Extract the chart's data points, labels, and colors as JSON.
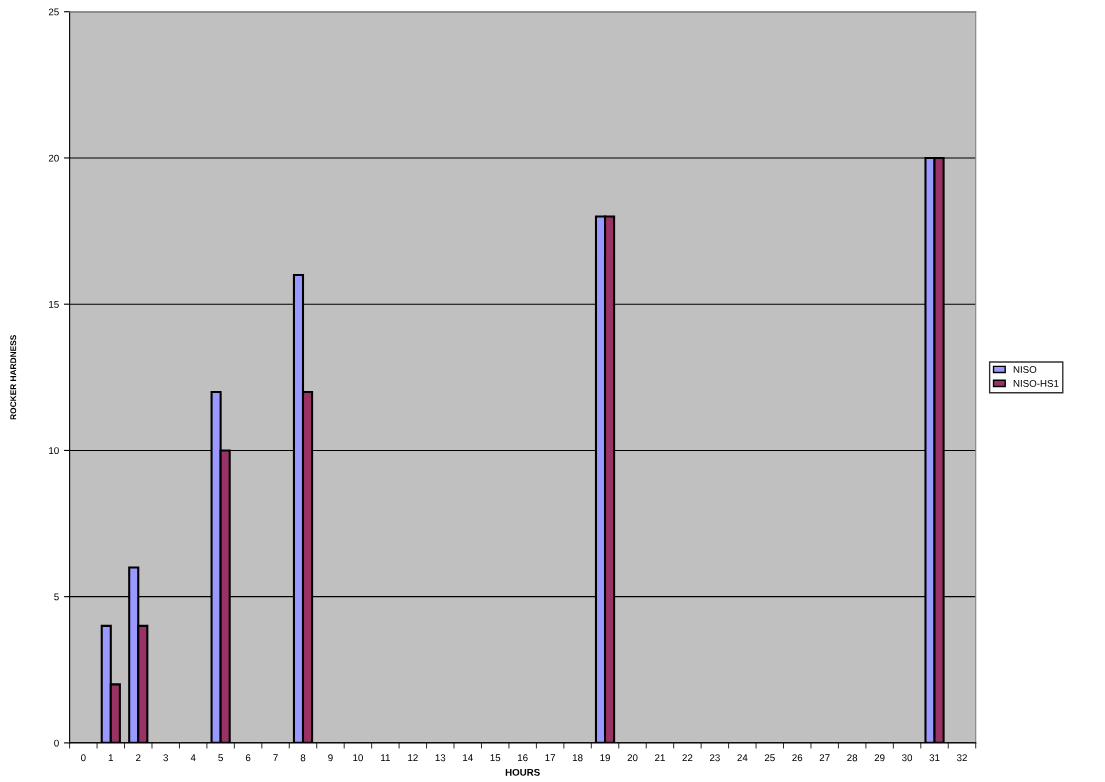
{
  "chart_data": {
    "type": "bar",
    "xlabel": "HOURS",
    "ylabel": "ROCKER HARDNESS",
    "categories": [
      "0",
      "1",
      "2",
      "3",
      "4",
      "5",
      "6",
      "7",
      "8",
      "9",
      "10",
      "11",
      "12",
      "13",
      "14",
      "15",
      "16",
      "17",
      "18",
      "19",
      "20",
      "21",
      "22",
      "23",
      "24",
      "25",
      "26",
      "27",
      "28",
      "29",
      "30",
      "31",
      "32"
    ],
    "series": [
      {
        "name": "NISO",
        "color": "#9999ff",
        "values": [
          null,
          4,
          6,
          null,
          null,
          12,
          null,
          null,
          16,
          null,
          null,
          null,
          null,
          null,
          null,
          null,
          null,
          null,
          null,
          18,
          null,
          null,
          null,
          null,
          null,
          null,
          null,
          null,
          null,
          null,
          null,
          20,
          null
        ]
      },
      {
        "name": "NISO-HS1",
        "color": "#993366",
        "values": [
          null,
          2,
          4,
          null,
          null,
          10,
          null,
          null,
          12,
          null,
          null,
          null,
          null,
          null,
          null,
          null,
          null,
          null,
          null,
          18,
          null,
          null,
          null,
          null,
          null,
          null,
          null,
          null,
          null,
          null,
          null,
          20,
          null
        ]
      }
    ],
    "ylim": [
      0,
      25
    ],
    "yticks": [
      0,
      5,
      10,
      15,
      20,
      25
    ],
    "grid": "y",
    "legend": "right"
  }
}
